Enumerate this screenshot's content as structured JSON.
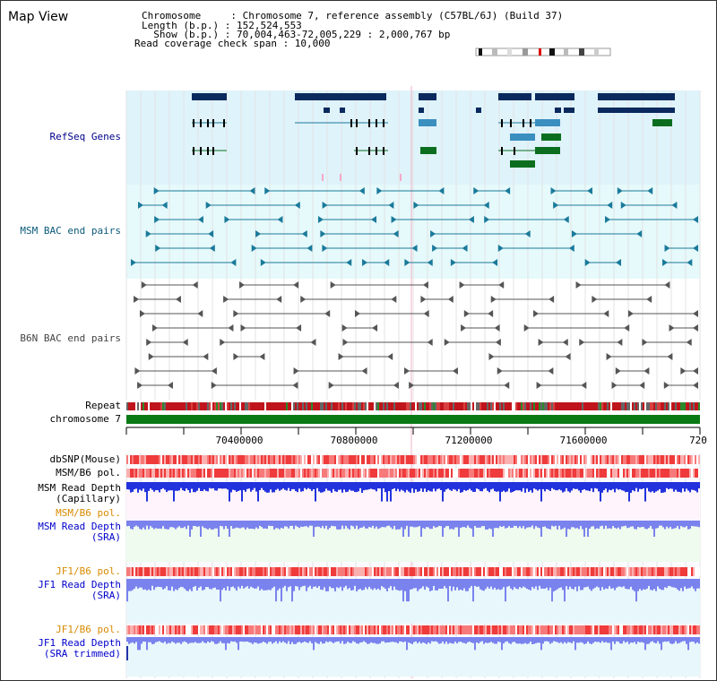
{
  "page": {
    "title": "Map View"
  },
  "info": {
    "chromosome_line": "Chromosome     : Chromosome 7, reference assembly (C57BL/6J) (Build 37)",
    "length_line": "Length (b.p.) : 152,524,553",
    "show_line": "  Show (b.p.) : 70,004,463-72,005,229 : 2,000,767 bp",
    "coverage_line": "Read coverage check span : 10,000"
  },
  "tracks": {
    "refseq": "RefSeq Genes",
    "msm_bac": "MSM BAC end pairs",
    "b6n_bac": "B6N BAC end pairs",
    "repeat": "Repeat",
    "chromosome": "chromosome 7",
    "dbsnp": "dbSNP(Mouse)",
    "msm_b6_pol_1": "MSM/B6 pol.",
    "msm_read_depth_cap_1": "MSM Read Depth",
    "msm_read_depth_cap_2": "(Capillary)",
    "msm_b6_pol_2": "MSM/B6 pol.",
    "msm_read_depth_sra_1": "MSM Read Depth",
    "msm_read_depth_sra_2": "(SRA)",
    "jf1_b6_pol_1": "JF1/B6 pol.",
    "jf1_read_depth_sra_1": "JF1 Read Depth",
    "jf1_read_depth_sra_2": "(SRA)",
    "jf1_b6_pol_2": "JF1/B6 pol.",
    "jf1_read_depth_trim_1": "JF1 Read Depth",
    "jf1_read_depth_trim_2": "(SRA trimmed)"
  },
  "ruler": {
    "ticks": [
      "70400000",
      "70800000",
      "71200000",
      "71600000",
      "720"
    ]
  },
  "colors": {
    "refseq_bg": "#dff3fb",
    "msm_bg": "#e6f9fb",
    "b6n_bg": "#f4f4f4",
    "navy_gene": "#0a2a5e",
    "mid_blue_gene": "#3a8fbf",
    "green_gene": "#0a6e1e",
    "teal_line": "#1a7a9a",
    "gray_line": "#555555",
    "chromosome_green": "#0a7a14",
    "depth_blue": "#2233dd",
    "depth_light_blue": "#7a82ee"
  }
}
